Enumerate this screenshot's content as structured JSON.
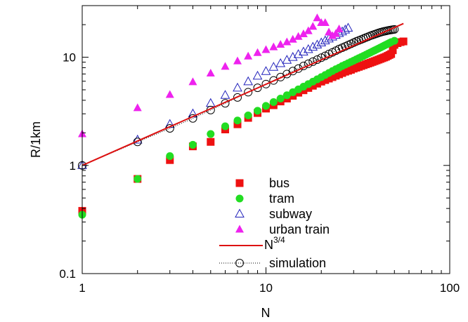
{
  "chart_data": {
    "type": "scatter",
    "title": "",
    "xlabel": "N",
    "ylabel": "R/1km",
    "xscale": "log",
    "yscale": "log",
    "xlim": [
      1,
      100
    ],
    "ylim": [
      0.1,
      30
    ],
    "grid": false,
    "legend_position": "bottom-center",
    "x_ticks": [
      {
        "value": 1,
        "label": "1"
      },
      {
        "value": 10,
        "label": "10"
      },
      {
        "value": 100,
        "label": "100"
      }
    ],
    "y_ticks": [
      {
        "value": 0.1,
        "label": "0.1"
      },
      {
        "value": 1,
        "label": "1"
      },
      {
        "value": 10,
        "label": "10"
      }
    ],
    "series": [
      {
        "name": "bus",
        "marker": "filled-square",
        "color": "#ee1111",
        "x": [
          1,
          2,
          3,
          4,
          5,
          6,
          7,
          8,
          9,
          10,
          11,
          12,
          13,
          14,
          15,
          16,
          17,
          18,
          19,
          20,
          21,
          22,
          23,
          24,
          25,
          26,
          27,
          28,
          29,
          30,
          31,
          32,
          33,
          34,
          35,
          36,
          37,
          38,
          39,
          40,
          41,
          42,
          43,
          44,
          45,
          46,
          47,
          48,
          49,
          50,
          52,
          54,
          56
        ],
        "y": [
          0.38,
          0.75,
          1.12,
          1.5,
          1.65,
          2.15,
          2.4,
          2.75,
          3.05,
          3.35,
          3.6,
          3.9,
          4.15,
          4.4,
          4.7,
          4.95,
          5.2,
          5.45,
          5.7,
          5.95,
          6.15,
          6.35,
          6.55,
          6.75,
          6.95,
          7.15,
          7.35,
          7.5,
          7.65,
          7.85,
          8.0,
          8.15,
          8.3,
          8.45,
          8.6,
          8.75,
          8.9,
          9.05,
          9.2,
          9.35,
          9.5,
          9.65,
          9.8,
          9.95,
          10.1,
          10.3,
          10.5,
          10.7,
          11.6,
          13.0,
          13.5,
          13.8,
          14.0
        ]
      },
      {
        "name": "tram",
        "marker": "filled-circle",
        "color": "#22dd22",
        "x": [
          1,
          2,
          3,
          4,
          5,
          6,
          7,
          8,
          9,
          10,
          11,
          12,
          13,
          14,
          15,
          16,
          17,
          18,
          19,
          20,
          21,
          22,
          23,
          24,
          25,
          26,
          27,
          28,
          29,
          30,
          31,
          32,
          33,
          34,
          35,
          36,
          37,
          38,
          39,
          40,
          41,
          42,
          43,
          44,
          45,
          46,
          47,
          48,
          50
        ],
        "y": [
          0.35,
          0.75,
          1.22,
          1.55,
          1.95,
          2.3,
          2.6,
          2.9,
          3.2,
          3.55,
          3.85,
          4.15,
          4.45,
          4.75,
          5.05,
          5.35,
          5.65,
          5.95,
          6.25,
          6.55,
          6.85,
          7.15,
          7.45,
          7.75,
          8.0,
          8.3,
          8.55,
          8.8,
          9.05,
          9.3,
          9.55,
          9.8,
          10.05,
          10.3,
          10.55,
          10.8,
          11.05,
          11.3,
          11.55,
          11.8,
          12.05,
          12.3,
          12.55,
          12.8,
          13.05,
          13.3,
          13.55,
          13.8,
          14.2
        ]
      },
      {
        "name": "subway",
        "marker": "open-triangle",
        "color": "#2222bb",
        "x": [
          1,
          2,
          3,
          4,
          5,
          6,
          7,
          8,
          9,
          10,
          11,
          12,
          13,
          14,
          15,
          16,
          17,
          18,
          19,
          20,
          21,
          22,
          23,
          24,
          25,
          26,
          27,
          28
        ],
        "y": [
          1.0,
          1.72,
          2.4,
          3.0,
          3.75,
          4.45,
          5.2,
          5.95,
          6.7,
          7.4,
          8.1,
          8.75,
          9.4,
          10.0,
          10.6,
          11.2,
          11.8,
          12.4,
          13.0,
          13.6,
          14.2,
          14.8,
          15.4,
          16.0,
          16.6,
          17.2,
          17.9,
          18.6
        ]
      },
      {
        "name": "urban train",
        "marker": "filled-triangle",
        "color": "#ee22ee",
        "x": [
          1,
          2,
          3,
          4,
          5,
          6,
          7,
          8,
          9,
          10,
          11,
          12,
          13,
          14,
          15,
          16,
          17,
          18,
          19,
          20,
          21,
          22,
          23,
          24,
          25
        ],
        "y": [
          1.95,
          3.4,
          4.5,
          5.9,
          7.1,
          8.2,
          9.2,
          10.2,
          11.0,
          11.7,
          12.4,
          13.1,
          13.8,
          14.6,
          15.5,
          16.4,
          17.5,
          19.2,
          23.0,
          20.8,
          20.8,
          17.0,
          15.8,
          16.5,
          18.2
        ]
      },
      {
        "name": "N^{3/4}",
        "label_base": "N",
        "label_sup": "3/4",
        "marker": "line",
        "color": "#dd1111",
        "x_range": [
          1,
          56
        ],
        "exponent": 0.75,
        "coefficient": 1.0
      },
      {
        "name": "simulation",
        "marker": "open-circle-dotted-line",
        "color": "#000000",
        "x": [
          1,
          2,
          3,
          4,
          5,
          6,
          7,
          8,
          9,
          10,
          11,
          12,
          13,
          14,
          15,
          16,
          17,
          18,
          19,
          20,
          21,
          22,
          23,
          24,
          25,
          26,
          27,
          28,
          29,
          30,
          31,
          32,
          33,
          34,
          35,
          36,
          37,
          38,
          39,
          40,
          41,
          42,
          43,
          44,
          45,
          46,
          47,
          48,
          49,
          50
        ],
        "y": [
          1.0,
          1.65,
          2.2,
          2.72,
          3.25,
          3.75,
          4.25,
          4.75,
          5.22,
          5.65,
          6.1,
          6.55,
          7.0,
          7.45,
          7.85,
          8.3,
          8.7,
          9.1,
          9.5,
          9.9,
          10.3,
          10.7,
          11.1,
          11.5,
          11.9,
          12.25,
          12.6,
          12.95,
          13.3,
          13.65,
          14.0,
          14.3,
          14.6,
          14.9,
          15.2,
          15.5,
          15.8,
          16.05,
          16.3,
          16.55,
          16.8,
          17.0,
          17.2,
          17.35,
          17.5,
          17.65,
          17.8,
          17.9,
          18.0,
          18.1
        ]
      }
    ]
  }
}
